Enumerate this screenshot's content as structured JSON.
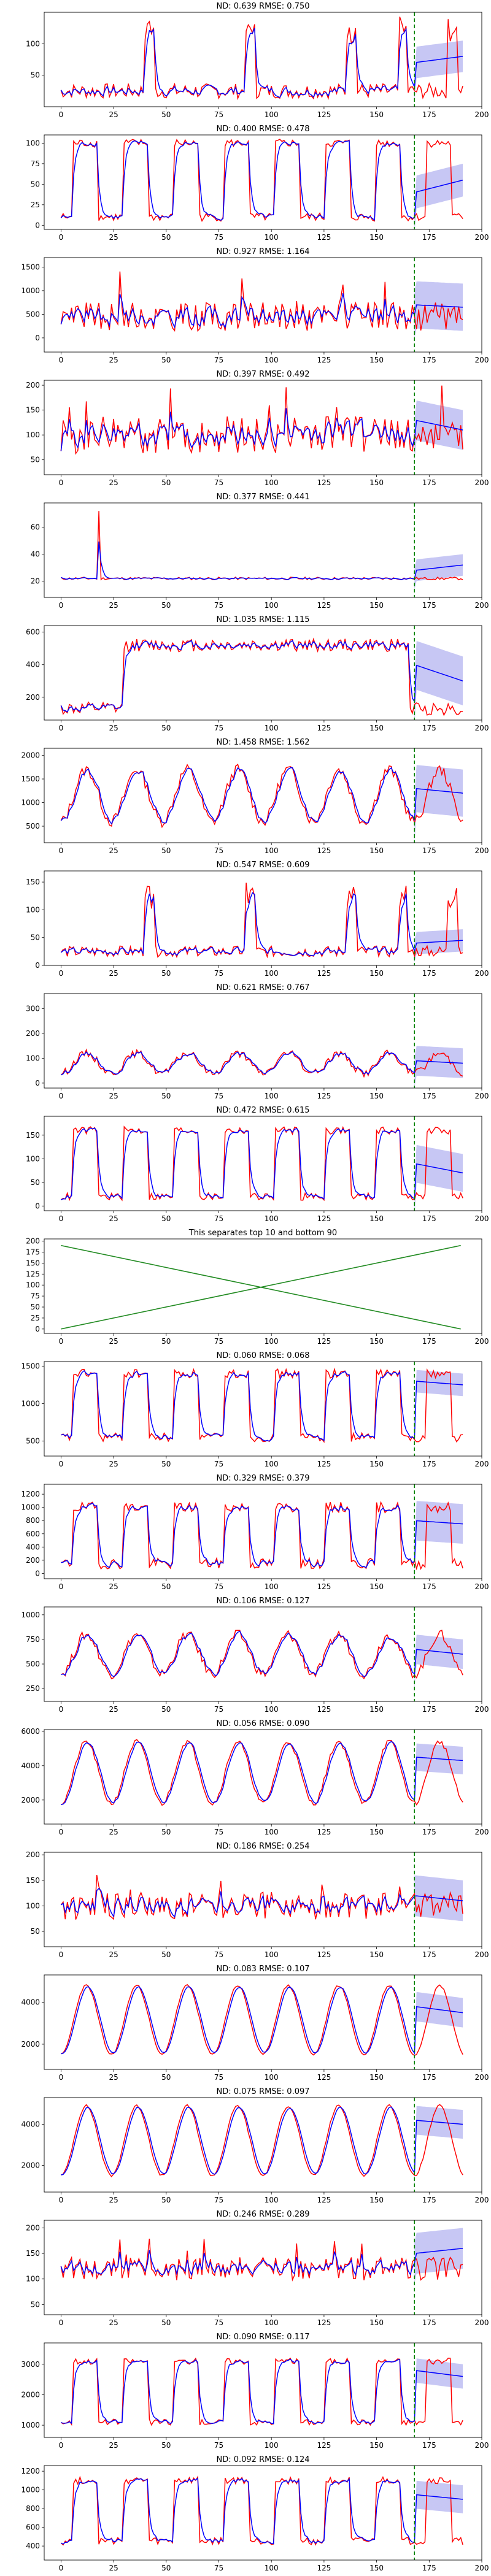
{
  "colors": {
    "actual": "#ff0000",
    "forecast": "#0000ff",
    "band": "#b4b4f0",
    "split": "#008000",
    "cross": "#228b22"
  },
  "x_ticks": [
    0,
    25,
    50,
    75,
    100,
    125,
    150,
    175,
    200
  ],
  "chart_data": [
    {
      "type": "line",
      "title": "ND:  0.639 RMSE:  0.750",
      "xlim": [
        -8,
        200
      ],
      "ylim": [
        0,
        150
      ],
      "yticks": [
        50,
        100
      ],
      "pattern": "spikes",
      "base": 25,
      "peak": 140,
      "noise": 12,
      "ftail": [
        70,
        80
      ],
      "band": 25,
      "split": 168
    },
    {
      "type": "line",
      "title": "ND:  0.400 RMSE:  0.478",
      "xlim": [
        -8,
        200
      ],
      "ylim": [
        -5,
        110
      ],
      "yticks": [
        0,
        25,
        50,
        75,
        100
      ],
      "pattern": "blocks",
      "base": 10,
      "peak": 100,
      "noise": 5,
      "ftail": [
        40,
        55
      ],
      "band": 20,
      "split": 168
    },
    {
      "type": "line",
      "title": "ND:  0.927 RMSE:  1.164",
      "xlim": [
        -8,
        200
      ],
      "ylim": [
        -300,
        1700
      ],
      "yticks": [
        0,
        500,
        1000,
        1500
      ],
      "pattern": "noisy",
      "base": 450,
      "peak": 1400,
      "noise": 200,
      "ftail": [
        700,
        650
      ],
      "band": 500,
      "split": 168
    },
    {
      "type": "line",
      "title": "ND:  0.397 RMSE:  0.492",
      "xlim": [
        -8,
        200
      ],
      "ylim": [
        20,
        210
      ],
      "yticks": [
        50,
        100,
        150,
        200
      ],
      "pattern": "noisy",
      "base": 100,
      "peak": 180,
      "noise": 25,
      "ftail": [
        130,
        110
      ],
      "band": 40,
      "split": 168
    },
    {
      "type": "line",
      "title": "ND:  0.377 RMSE:  0.441",
      "xlim": [
        -8,
        200
      ],
      "ylim": [
        8,
        78
      ],
      "yticks": [
        20,
        40,
        60
      ],
      "pattern": "flat",
      "base": 22,
      "peak": 72,
      "noise": 1,
      "ftail": [
        28,
        32
      ],
      "band": 8,
      "split": 168
    },
    {
      "type": "line",
      "title": "ND:  1.035 RMSE:  1.115",
      "xlim": [
        -8,
        200
      ],
      "ylim": [
        60,
        640
      ],
      "yticks": [
        200,
        400,
        600
      ],
      "pattern": "step",
      "base": 130,
      "peak": 520,
      "noise": 40,
      "ftail": [
        400,
        300
      ],
      "band": 150,
      "split": 168
    },
    {
      "type": "line",
      "title": "ND:  1.458 RMSE:  1.562",
      "xlim": [
        -8,
        200
      ],
      "ylim": [
        150,
        2150
      ],
      "yticks": [
        500,
        1000,
        1500,
        2000
      ],
      "pattern": "waves",
      "base": 600,
      "peak": 1700,
      "noise": 120,
      "ftail": [
        1300,
        1200
      ],
      "band": 500,
      "split": 168
    },
    {
      "type": "line",
      "title": "ND:  0.547 RMSE:  0.609",
      "xlim": [
        -8,
        200
      ],
      "ylim": [
        0,
        170
      ],
      "yticks": [
        0,
        50,
        100,
        150
      ],
      "pattern": "spikes",
      "base": 25,
      "peak": 145,
      "noise": 10,
      "ftail": [
        40,
        45
      ],
      "band": 20,
      "split": 168
    },
    {
      "type": "line",
      "title": "ND:  0.621 RMSE:  0.767",
      "xlim": [
        -8,
        200
      ],
      "ylim": [
        -20,
        360
      ],
      "yticks": [
        0,
        100,
        200,
        300
      ],
      "pattern": "waves",
      "base": 40,
      "peak": 120,
      "noise": 15,
      "ftail": [
        90,
        80
      ],
      "band": 60,
      "split": 168
    },
    {
      "type": "line",
      "title": "ND:  0.472 RMSE:  0.615",
      "xlim": [
        -8,
        200
      ],
      "ylim": [
        -10,
        190
      ],
      "yticks": [
        0,
        50,
        100,
        150
      ],
      "pattern": "blocks",
      "base": 20,
      "peak": 160,
      "noise": 8,
      "ftail": [
        90,
        70
      ],
      "band": 40,
      "split": 168
    },
    {
      "type": "line",
      "title": "This separates top 10 and bottom 90",
      "xlim": [
        -8,
        200
      ],
      "ylim": [
        -10,
        205
      ],
      "yticks": [
        0,
        25,
        50,
        75,
        100,
        125,
        150,
        175,
        200
      ],
      "pattern": "cross",
      "series": [
        {
          "values": [
            [
              0,
              0
            ],
            [
              190,
              190
            ]
          ]
        },
        {
          "values": [
            [
              0,
              190
            ],
            [
              190,
              0
            ]
          ]
        }
      ]
    },
    {
      "type": "line",
      "title": "ND:  0.060 RMSE:  0.068",
      "xlim": [
        -8,
        200
      ],
      "ylim": [
        300,
        1560
      ],
      "yticks": [
        500,
        1000,
        1500
      ],
      "pattern": "blocks",
      "base": 550,
      "peak": 1400,
      "noise": 60,
      "ftail": [
        1300,
        1250
      ],
      "band": 150,
      "split": 168
    },
    {
      "type": "line",
      "title": "ND:  0.329 RMSE:  0.379",
      "xlim": [
        -8,
        200
      ],
      "ylim": [
        -80,
        1350
      ],
      "yticks": [
        0,
        200,
        400,
        600,
        800,
        1000,
        1200
      ],
      "pattern": "blocks",
      "base": 150,
      "peak": 1000,
      "noise": 80,
      "ftail": [
        800,
        750
      ],
      "band": 300,
      "split": 168
    },
    {
      "type": "line",
      "title": "ND:  0.106 RMSE:  0.127",
      "xlim": [
        -8,
        200
      ],
      "ylim": [
        120,
        1080
      ],
      "yticks": [
        250,
        500,
        750,
        1000
      ],
      "pattern": "waves",
      "base": 400,
      "peak": 800,
      "noise": 50,
      "ftail": [
        650,
        600
      ],
      "band": 150,
      "split": 168
    },
    {
      "type": "line",
      "title": "ND:  0.056 RMSE:  0.090",
      "xlim": [
        -8,
        200
      ],
      "ylim": [
        600,
        6100
      ],
      "yticks": [
        2000,
        4000,
        6000
      ],
      "pattern": "waves",
      "base": 1800,
      "peak": 5400,
      "noise": 150,
      "ftail": [
        4500,
        4300
      ],
      "band": 800,
      "split": 168
    },
    {
      "type": "line",
      "title": "ND:  0.186 RMSE:  0.254",
      "xlim": [
        -8,
        200
      ],
      "ylim": [
        20,
        205
      ],
      "yticks": [
        50,
        100,
        150,
        200
      ],
      "pattern": "noisy",
      "base": 100,
      "peak": 150,
      "noise": 18,
      "ftail": [
        120,
        110
      ],
      "band": 40,
      "split": 168
    },
    {
      "type": "line",
      "title": "ND:  0.083 RMSE:  0.107",
      "xlim": [
        -8,
        200
      ],
      "ylim": [
        800,
        5300
      ],
      "yticks": [
        2000,
        4000
      ],
      "pattern": "smooth",
      "base": 1500,
      "peak": 4800,
      "noise": 100,
      "ftail": [
        3800,
        3500
      ],
      "band": 700,
      "split": 168
    },
    {
      "type": "line",
      "title": "ND:  0.075 RMSE:  0.097",
      "xlim": [
        -8,
        200
      ],
      "ylim": [
        700,
        5300
      ],
      "yticks": [
        2000,
        4000
      ],
      "pattern": "smooth",
      "base": 1500,
      "peak": 4900,
      "noise": 120,
      "ftail": [
        4200,
        4000
      ],
      "band": 700,
      "split": 168
    },
    {
      "type": "line",
      "title": "ND:  0.246 RMSE:  0.289",
      "xlim": [
        -8,
        200
      ],
      "ylim": [
        30,
        215
      ],
      "yticks": [
        50,
        100,
        150,
        200
      ],
      "pattern": "noisy",
      "base": 120,
      "peak": 170,
      "noise": 15,
      "ftail": [
        150,
        160
      ],
      "band": 40,
      "split": 168
    },
    {
      "type": "line",
      "title": "ND:  0.090 RMSE:  0.117",
      "xlim": [
        -8,
        200
      ],
      "ylim": [
        600,
        3700
      ],
      "yticks": [
        1000,
        2000,
        3000
      ],
      "pattern": "blocks",
      "base": 1100,
      "peak": 3100,
      "noise": 100,
      "ftail": [
        2800,
        2600
      ],
      "band": 400,
      "split": 168
    },
    {
      "type": "line",
      "title": "ND:  0.092 RMSE:  0.124",
      "xlim": [
        -8,
        200
      ],
      "ylim": [
        250,
        1260
      ],
      "yticks": [
        400,
        600,
        800,
        1000,
        1200
      ],
      "pattern": "blocks",
      "base": 450,
      "peak": 1100,
      "noise": 40,
      "ftail": [
        950,
        900
      ],
      "band": 150,
      "split": 168
    }
  ]
}
